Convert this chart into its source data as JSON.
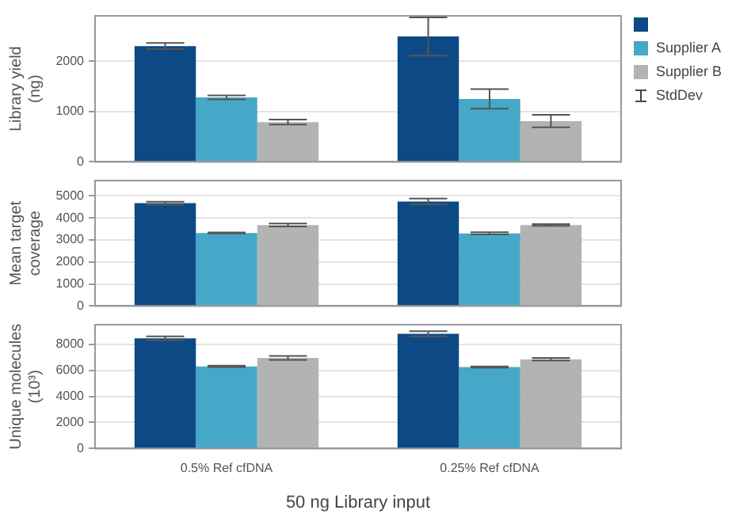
{
  "chart_data": [
    {
      "type": "bar",
      "ylabel": "Library yield (ng)",
      "ylim": [
        0,
        2900
      ],
      "yticks": [
        0,
        1000,
        2000
      ],
      "grid": "y",
      "tick_labels": "y",
      "legend": "right",
      "annotations": [
        "StdDev"
      ],
      "series": [
        {
          "color": "#0d4a85",
          "values": [
            2300,
            2490
          ],
          "errors": [
            60,
            380
          ]
        },
        {
          "name": "Supplier A",
          "color": "#45a8c8",
          "values": [
            1280,
            1250
          ],
          "errors": [
            40,
            195
          ]
        },
        {
          "name": "Supplier B",
          "color": "#b3b3b3",
          "values": [
            790,
            810
          ],
          "errors": [
            50,
            125
          ]
        }
      ]
    },
    {
      "type": "bar",
      "ylabel": "Mean target coverage",
      "ylim": [
        0,
        5700
      ],
      "yticks": [
        0,
        1000,
        2000,
        3000,
        4000,
        5000
      ],
      "grid": "y",
      "tick_labels": "y",
      "series": [
        {
          "color": "#0d4a85",
          "values": [
            4670,
            4750
          ],
          "errors": [
            70,
            130
          ]
        },
        {
          "color": "#45a8c8",
          "values": [
            3320,
            3300
          ],
          "errors": [
            20,
            50
          ]
        },
        {
          "color": "#b3b3b3",
          "values": [
            3680,
            3680
          ],
          "errors": [
            70,
            40
          ]
        }
      ]
    },
    {
      "type": "bar",
      "ylabel": "Unique molecules (10³)",
      "xlabel": "50 ng Library input",
      "categories": [
        "0.5% Ref cfDNA",
        "0.25% Ref cfDNA"
      ],
      "ylim": [
        0,
        9500
      ],
      "yticks": [
        0,
        2000,
        4000,
        6000,
        8000
      ],
      "grid": "y",
      "series": [
        {
          "color": "#0d4a85",
          "values": [
            8450,
            8800
          ],
          "errors": [
            150,
            200
          ]
        },
        {
          "color": "#45a8c8",
          "values": [
            6300,
            6250
          ],
          "errors": [
            50,
            50
          ]
        },
        {
          "color": "#b3b3b3",
          "values": [
            6950,
            6850
          ],
          "errors": [
            150,
            100
          ]
        }
      ]
    }
  ]
}
